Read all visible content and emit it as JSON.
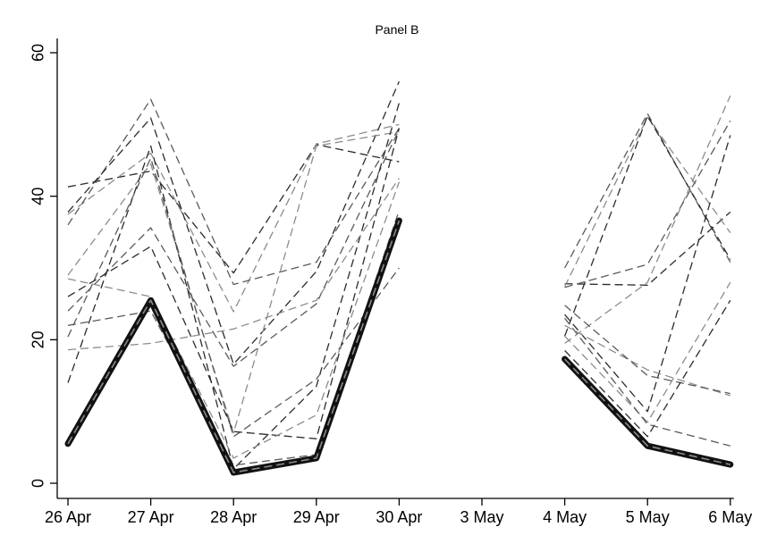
{
  "chart_data": {
    "type": "line",
    "title": "Panel B",
    "xlabel": "",
    "ylabel": "",
    "categories": [
      "26 Apr",
      "27 Apr",
      "28 Apr",
      "29 Apr",
      "30 Apr",
      "3 May",
      "4 May",
      "5 May",
      "6 May"
    ],
    "yticks": [
      0,
      20,
      40,
      60
    ],
    "ylim": [
      -1,
      62
    ],
    "grid": false,
    "legend": "none",
    "colors": {
      "highlight": "#111111",
      "highlight_inner": "#8a8a8a",
      "dark": "#2b2b2b",
      "mid": "#5a5a5a",
      "light": "#8c8c8c"
    },
    "series": [
      {
        "style": "dark",
        "values": [
          41.3,
          43.5,
          29.3,
          47.2,
          44.8,
          null,
          27.8,
          27.6,
          37.8
        ]
      },
      {
        "style": "light",
        "values": [
          37.5,
          46.0,
          23.9,
          47.3,
          50.0,
          null,
          27.4,
          51.0,
          34.9
        ]
      },
      {
        "style": "mid",
        "values": [
          36.0,
          53.5,
          27.7,
          30.8,
          49.5,
          null,
          30.0,
          51.5,
          30.8
        ]
      },
      {
        "style": "dark",
        "values": [
          37.8,
          50.9,
          16.6,
          29.5,
          56.0,
          null,
          20.5,
          51.2,
          31.2
        ]
      },
      {
        "style": "light",
        "values": [
          29.0,
          44.5,
          7.0,
          47.0,
          49.0,
          null,
          19.5,
          28.0,
          54.0
        ]
      },
      {
        "style": "mid",
        "values": [
          24.0,
          35.6,
          16.3,
          25.0,
          49.3,
          null,
          27.3,
          30.5,
          50.5
        ]
      },
      {
        "style": "dark",
        "values": [
          14.0,
          47.0,
          2.0,
          13.5,
          53.0,
          null,
          23.5,
          10.0,
          48.5
        ]
      },
      {
        "style": "light",
        "values": [
          18.6,
          19.5,
          21.5,
          25.5,
          42.5,
          null,
          22.0,
          15.8,
          12.2
        ]
      },
      {
        "style": "mid",
        "values": [
          20.4,
          45.3,
          6.5,
          14.5,
          30.0,
          null,
          24.8,
          15.0,
          12.5
        ]
      },
      {
        "style": "dark",
        "values": [
          26.0,
          33.0,
          7.2,
          6.2,
          49.5,
          null,
          18.5,
          6.5,
          25.5
        ]
      },
      {
        "style": "light",
        "values": [
          28.5,
          26.0,
          3.5,
          9.5,
          42.0,
          null,
          20.5,
          8.5,
          28.0
        ]
      },
      {
        "style": "mid",
        "values": [
          22.0,
          24.0,
          2.5,
          4.0,
          38.0,
          null,
          23.0,
          8.2,
          5.2
        ]
      },
      {
        "style": "highlight",
        "values": [
          5.5,
          25.5,
          1.5,
          3.5,
          36.6,
          null,
          17.3,
          5.2,
          2.6
        ]
      }
    ]
  }
}
